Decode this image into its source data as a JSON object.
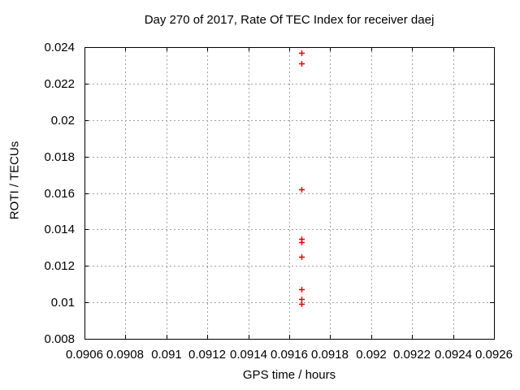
{
  "chart_data": {
    "type": "scatter",
    "title": "Day 270 of 2017, Rate Of TEC Index for receiver daej",
    "xlabel": "GPS time / hours",
    "ylabel": "ROTI / TECUs",
    "xlim": [
      0.0906,
      0.0926
    ],
    "ylim": [
      0.008,
      0.024
    ],
    "xticks": [
      0.0906,
      0.0908,
      0.091,
      0.0912,
      0.0914,
      0.0916,
      0.0918,
      0.092,
      0.0922,
      0.0924,
      0.0926
    ],
    "xtick_labels": [
      "0.0906",
      "0.0908",
      "0.091",
      "0.0912",
      "0.0914",
      "0.0916",
      "0.0918",
      "0.092",
      "0.0922",
      "0.0924",
      "0.0926"
    ],
    "yticks": [
      0.008,
      0.01,
      0.012,
      0.014,
      0.016,
      0.018,
      0.02,
      0.022,
      0.024
    ],
    "ytick_labels": [
      "0.008",
      "0.01",
      "0.012",
      "0.014",
      "0.016",
      "0.018",
      "0.02",
      "0.022",
      "0.024"
    ],
    "grid": true,
    "legend_position": "none",
    "marker": "plus",
    "marker_color": "#e60000",
    "grid_color": "#a0a0a0",
    "border_color": "#000000",
    "text_color": "#000000",
    "background_color": "#ffffff",
    "series": [
      {
        "name": "ROTI",
        "points": [
          {
            "x": 0.09166,
            "y": 0.0237
          },
          {
            "x": 0.09166,
            "y": 0.0231
          },
          {
            "x": 0.09166,
            "y": 0.0162
          },
          {
            "x": 0.09166,
            "y": 0.0135
          },
          {
            "x": 0.09166,
            "y": 0.0133
          },
          {
            "x": 0.09166,
            "y": 0.0125
          },
          {
            "x": 0.09166,
            "y": 0.0107
          },
          {
            "x": 0.09166,
            "y": 0.0102
          },
          {
            "x": 0.09166,
            "y": 0.0099
          }
        ]
      }
    ]
  }
}
